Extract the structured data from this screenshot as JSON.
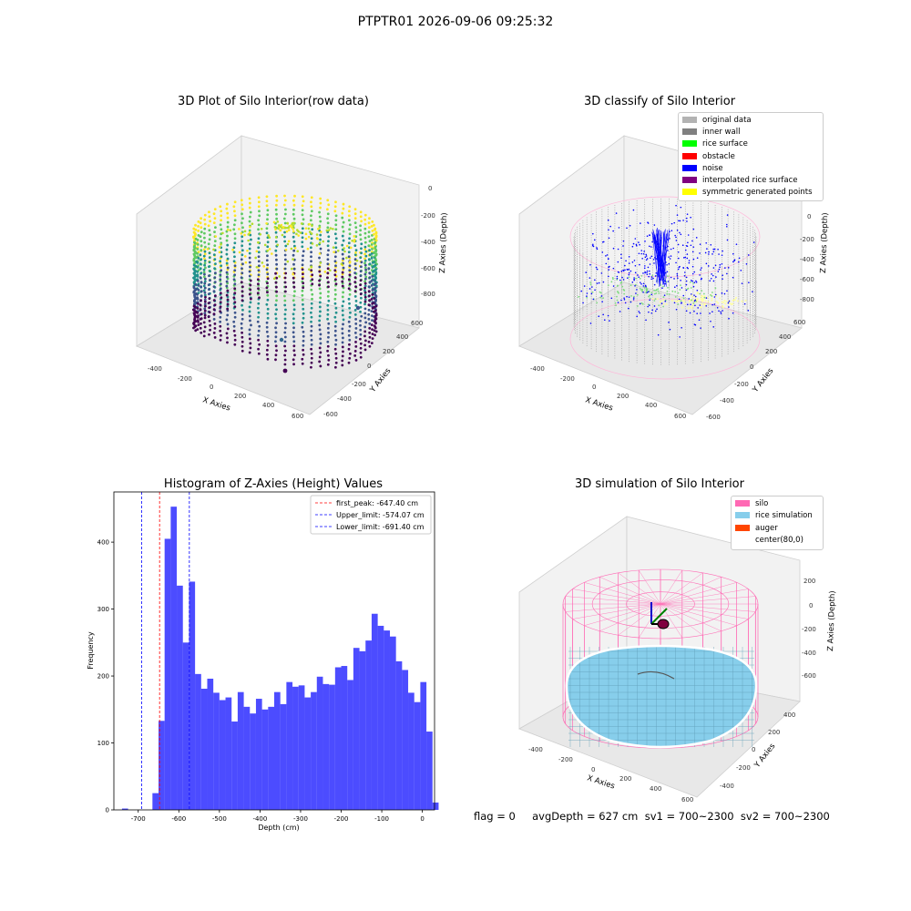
{
  "figure": {
    "suptitle": "PTPTR01 2026-09-06 09:25:32",
    "bottom_text": "flag = 0     avgDepth = 627 cm  sv1 = 700~2300  sv2 = 700~2300"
  },
  "panels": {
    "raw": {
      "title": "3D Plot of Silo Interior(row data)",
      "xlabel": "X Axies",
      "ylabel": "Y Axies",
      "zlabel": "Z Axies (Depth)",
      "xticks": [
        "-400",
        "-200",
        "0",
        "200",
        "400",
        "600"
      ],
      "yticks": [
        "-600",
        "-400",
        "-200",
        "0",
        "200",
        "400",
        "600"
      ],
      "zticks": [
        "0",
        "-200",
        "-400",
        "-600",
        "-800"
      ]
    },
    "classify": {
      "title": "3D classify of Silo Interior",
      "xlabel": "X Axies",
      "ylabel": "Y Axies",
      "zlabel": "Z Axies (Depth)",
      "xticks": [
        "-400",
        "-200",
        "0",
        "200",
        "400",
        "600"
      ],
      "yticks": [
        "-600",
        "-400",
        "-200",
        "0",
        "200",
        "400",
        "600"
      ],
      "zticks": [
        "0",
        "-200",
        "-400",
        "-600",
        "-800"
      ],
      "legend": [
        {
          "label": "original data",
          "color": "#b3b3b3"
        },
        {
          "label": "inner wall",
          "color": "#808080"
        },
        {
          "label": "rice surface",
          "color": "#00ff00"
        },
        {
          "label": "obstacle",
          "color": "#ff0000"
        },
        {
          "label": "noise",
          "color": "#0000ff"
        },
        {
          "label": "interpolated rice surface",
          "color": "#800080"
        },
        {
          "label": "symmetric generated points",
          "color": "#ffff00"
        }
      ]
    },
    "simulation": {
      "title": "3D simulation of Silo Interior",
      "xlabel": "X Axies",
      "ylabel": "Y Axies",
      "zlabel": "Z Axies (Depth)",
      "xticks": [
        "-400",
        "-200",
        "0",
        "200",
        "400",
        "600"
      ],
      "yticks": [
        "-400",
        "-200",
        "0",
        "200",
        "400"
      ],
      "zticks": [
        "200",
        "0",
        "-200",
        "-400",
        "-600"
      ],
      "legend": [
        {
          "label": "silo",
          "color": "#ff69b4"
        },
        {
          "label": "rice simulation",
          "color": "#87ceeb"
        },
        {
          "label": "auger",
          "color": "#ff4500"
        },
        {
          "label": "center(80,0)",
          "color": ""
        }
      ]
    }
  },
  "chart_data": {
    "type": "bar",
    "title": "Histogram of Z-Axies (Height) Values",
    "xlabel": "Depth (cm)",
    "ylabel": "Frequency",
    "xlim": [
      -760,
      30
    ],
    "ylim": [
      0,
      475
    ],
    "xticks": [
      -700,
      -600,
      -500,
      -400,
      -300,
      -200,
      -100,
      0
    ],
    "yticks": [
      0,
      100,
      200,
      300,
      400
    ],
    "bar_color": "#0000ff",
    "bar_alpha": 0.7,
    "bin_width": 15,
    "bin_start": -740,
    "values": [
      2,
      0,
      0,
      0,
      0,
      25,
      133,
      405,
      453,
      335,
      250,
      341,
      203,
      181,
      196,
      175,
      164,
      168,
      132,
      176,
      154,
      144,
      166,
      150,
      154,
      176,
      158,
      191,
      184,
      186,
      168,
      176,
      199,
      188,
      187,
      213,
      215,
      194,
      242,
      237,
      253,
      293,
      275,
      268,
      259,
      222,
      209,
      175,
      161,
      191,
      117,
      11
    ],
    "vlines": [
      {
        "value": -647.4,
        "color": "#ff0000",
        "label": "first_peak: -647.40 cm"
      },
      {
        "value": -574.07,
        "color": "#0000ff",
        "label": "Upper_limit: -574.07 cm"
      },
      {
        "value": -691.4,
        "color": "#0000ff",
        "label": "Lower_limit: -691.40 cm"
      }
    ],
    "legend_position": "top-right"
  }
}
